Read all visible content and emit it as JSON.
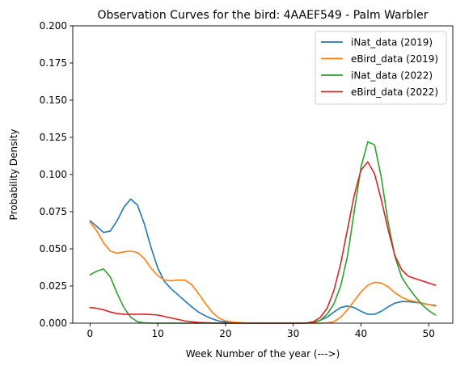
{
  "chart_data": {
    "type": "line",
    "title": "Observation Curves for the bird: 4AAEF549 - Palm Warbler",
    "xlabel": "Week Number of the year (--->)",
    "ylabel": "Probability Density",
    "xlim": [
      -2.55,
      53.55
    ],
    "ylim": [
      0,
      0.2
    ],
    "xticks": [
      0,
      10,
      20,
      30,
      40,
      50
    ],
    "yticks": [
      0.0,
      0.025,
      0.05,
      0.075,
      0.1,
      0.125,
      0.15,
      0.175,
      0.2
    ],
    "ytick_labels": [
      "0.000",
      "0.025",
      "0.050",
      "0.075",
      "0.100",
      "0.125",
      "0.150",
      "0.175",
      "0.200"
    ],
    "grid": false,
    "legend_position": "top-right",
    "x": [
      0,
      1,
      2,
      3,
      4,
      5,
      6,
      7,
      8,
      9,
      10,
      11,
      12,
      13,
      14,
      15,
      16,
      17,
      18,
      19,
      20,
      21,
      22,
      23,
      24,
      25,
      26,
      27,
      28,
      29,
      30,
      31,
      32,
      33,
      34,
      35,
      36,
      37,
      38,
      39,
      40,
      41,
      42,
      43,
      44,
      45,
      46,
      47,
      48,
      49,
      50,
      51
    ],
    "series": [
      {
        "name": "iNat_data (2019)",
        "color": "#1f77b4",
        "values": [
          0.069,
          0.065,
          0.061,
          0.062,
          0.069,
          0.078,
          0.0835,
          0.0795,
          0.067,
          0.051,
          0.037,
          0.028,
          0.023,
          0.019,
          0.015,
          0.011,
          0.0075,
          0.005,
          0.003,
          0.0015,
          0.0008,
          0.0004,
          0.0002,
          0.0001,
          0.0,
          0.0,
          0.0,
          0.0,
          0.0,
          0.0,
          0.0,
          0.0,
          0.0,
          0.0005,
          0.002,
          0.004,
          0.0075,
          0.0105,
          0.0115,
          0.0105,
          0.008,
          0.006,
          0.006,
          0.008,
          0.011,
          0.0135,
          0.0145,
          0.0145,
          0.014,
          0.0135,
          0.0125,
          0.012
        ]
      },
      {
        "name": "eBird_data (2019)",
        "color": "#ff7f0e",
        "values": [
          0.068,
          0.062,
          0.054,
          0.0485,
          0.047,
          0.048,
          0.0485,
          0.0475,
          0.0435,
          0.037,
          0.032,
          0.029,
          0.0285,
          0.029,
          0.029,
          0.026,
          0.02,
          0.0135,
          0.0075,
          0.0035,
          0.0015,
          0.0008,
          0.0004,
          0.0002,
          0.0001,
          0.0,
          0.0,
          0.0,
          0.0,
          0.0,
          0.0,
          0.0,
          0.0,
          0.0,
          0.0,
          0.0002,
          0.001,
          0.004,
          0.009,
          0.015,
          0.021,
          0.0255,
          0.0275,
          0.027,
          0.0245,
          0.0205,
          0.0175,
          0.0155,
          0.0145,
          0.0135,
          0.0125,
          0.0115
        ]
      },
      {
        "name": "iNat_data (2022)",
        "color": "#2ca02c",
        "values": [
          0.0325,
          0.035,
          0.0365,
          0.031,
          0.02,
          0.0105,
          0.004,
          0.001,
          0.0002,
          0.0,
          0.0,
          0.0,
          0.0,
          0.0,
          0.0,
          0.0,
          0.0,
          0.0,
          0.0,
          0.0,
          0.0,
          0.0,
          0.0,
          0.0,
          0.0,
          0.0,
          0.0,
          0.0,
          0.0,
          0.0,
          0.0,
          0.0,
          0.0,
          0.0005,
          0.002,
          0.006,
          0.013,
          0.025,
          0.045,
          0.075,
          0.105,
          0.122,
          0.12,
          0.098,
          0.068,
          0.045,
          0.031,
          0.024,
          0.018,
          0.0125,
          0.0085,
          0.0055
        ]
      },
      {
        "name": "eBird_data (2022)",
        "color": "#d62728",
        "values": [
          0.0105,
          0.01,
          0.009,
          0.0075,
          0.0065,
          0.006,
          0.006,
          0.006,
          0.006,
          0.0058,
          0.0055,
          0.0045,
          0.0035,
          0.0025,
          0.0015,
          0.001,
          0.0005,
          0.0003,
          0.0001,
          0.0,
          0.0,
          0.0,
          0.0,
          0.0,
          0.0,
          0.0,
          0.0,
          0.0,
          0.0,
          0.0,
          0.0,
          0.0,
          0.0002,
          0.001,
          0.004,
          0.01,
          0.022,
          0.04,
          0.063,
          0.086,
          0.103,
          0.1085,
          0.1005,
          0.083,
          0.063,
          0.0455,
          0.036,
          0.0315,
          0.03,
          0.0285,
          0.027,
          0.0255
        ]
      }
    ]
  }
}
